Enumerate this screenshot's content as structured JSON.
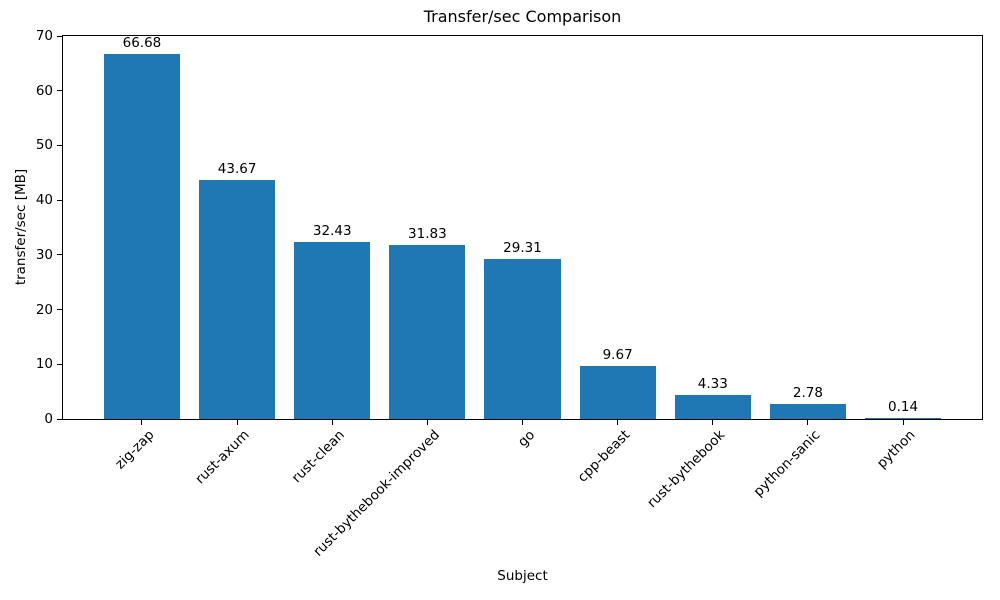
{
  "chart_data": {
    "type": "bar",
    "title": "Transfer/sec Comparison",
    "xlabel": "Subject",
    "ylabel": "transfer/sec [MB]",
    "categories": [
      "zig-zap",
      "rust-axum",
      "rust-clean",
      "rust-bythebook-improved",
      "go",
      "cpp-beast",
      "rust-bythebook",
      "python-sanic",
      "python"
    ],
    "values": [
      66.68,
      43.67,
      32.43,
      31.83,
      29.31,
      9.67,
      4.33,
      2.78,
      0.14
    ],
    "value_labels": [
      "66.68",
      "43.67",
      "32.43",
      "31.83",
      "29.31",
      "9.67",
      "4.33",
      "2.78",
      "0.14"
    ],
    "ylim": [
      0,
      70
    ],
    "yticks": [
      0,
      10,
      20,
      30,
      40,
      50,
      60,
      70
    ],
    "bar_color": "#1f77b4",
    "text_color": "#000000",
    "grid": false,
    "legend": null,
    "xtick_rotation": 45
  }
}
